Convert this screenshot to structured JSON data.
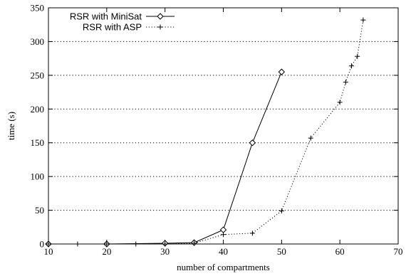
{
  "chart_data": {
    "type": "line",
    "title": "",
    "xlabel": "number of compartments",
    "ylabel": "time (s)",
    "xlim": [
      10,
      70
    ],
    "ylim": [
      0,
      350
    ],
    "xticks": [
      10,
      20,
      30,
      40,
      50,
      60,
      70
    ],
    "yticks": [
      0,
      50,
      100,
      150,
      200,
      250,
      300,
      350
    ],
    "grid": "horizontal dotted",
    "legend_position": "top-left",
    "series": [
      {
        "name": "RSR with MiniSat",
        "line_style": "solid",
        "marker": "diamond",
        "color": "#000000",
        "x": [
          10,
          20,
          30,
          35,
          40,
          45,
          50
        ],
        "y": [
          0,
          0,
          1,
          2,
          21,
          150,
          255
        ]
      },
      {
        "name": "RSR with ASP",
        "line_style": "dotted",
        "marker": "plus",
        "color": "#000000",
        "x": [
          10,
          15,
          20,
          25,
          30,
          35,
          40,
          45,
          50,
          55,
          60,
          61,
          62,
          63,
          64
        ],
        "y": [
          0,
          0,
          0,
          0,
          0,
          1,
          14,
          16,
          49,
          157,
          210,
          240,
          264,
          278,
          332
        ]
      }
    ]
  }
}
